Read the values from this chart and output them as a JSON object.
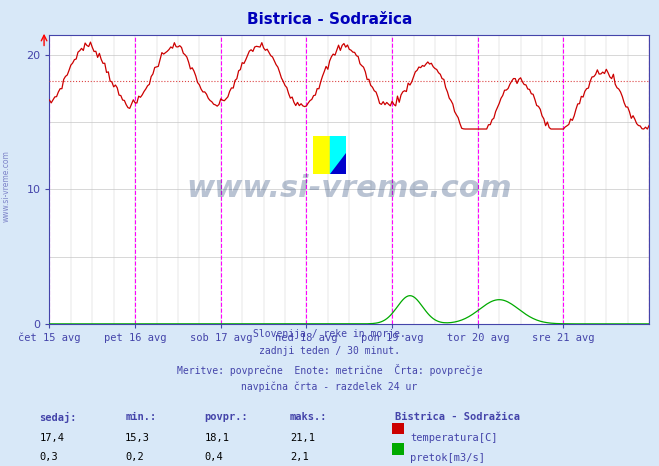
{
  "title": "Bistrica - Sodražica",
  "bg_color": "#d8e8f8",
  "plot_bg_color": "#ffffff",
  "grid_color": "#c8c8c8",
  "axis_color": "#4444aa",
  "title_color": "#0000bb",
  "ylim": [
    0,
    21.5
  ],
  "xlim": [
    0,
    336
  ],
  "y_ticks": [
    0,
    10,
    20
  ],
  "avg_line_temp": 18.1,
  "avg_line_color": "#dd4444",
  "temp_color": "#cc0000",
  "flow_color": "#00aa00",
  "watermark": "www.si-vreme.com",
  "subtitle_lines": [
    "Slovenija / reke in morje.",
    "zadnji teden / 30 minut.",
    "Meritve: povprečne  Enote: metrične  Črta: povprečje",
    "navpična črta - razdelek 24 ur"
  ],
  "table_header": [
    "sedaj:",
    "min.:",
    "povpr.:",
    "maks.:"
  ],
  "table_row1": [
    "17,4",
    "15,3",
    "18,1",
    "21,1"
  ],
  "table_row2": [
    "0,3",
    "0,2",
    "0,4",
    "2,1"
  ],
  "legend_title": "Bistrica - Sodražica",
  "legend_labels": [
    "temperatura[C]",
    "pretok[m3/s]"
  ],
  "x_tick_labels": [
    "čet 15 avg",
    "pet 16 avg",
    "sob 17 avg",
    "ned 18 avg",
    "pon 19 avg",
    "tor 20 avg",
    "sre 21 avg"
  ],
  "x_tick_positions": [
    0,
    48,
    96,
    144,
    192,
    240,
    288
  ],
  "magenta_vlines": [
    0,
    48,
    96,
    144,
    192,
    240,
    288,
    336
  ]
}
